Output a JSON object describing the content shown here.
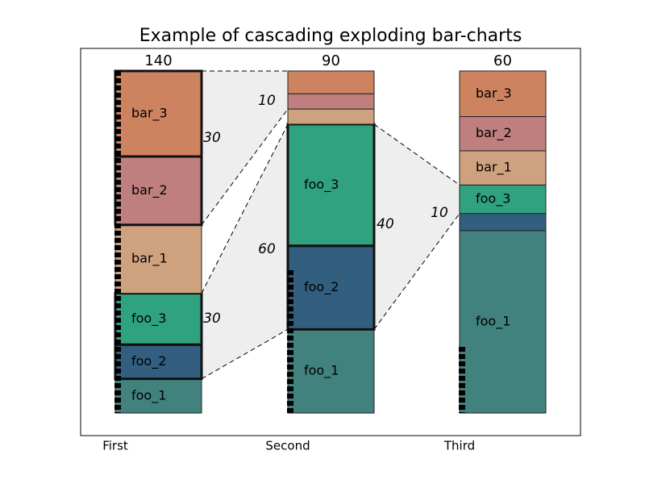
{
  "chart_data": {
    "type": "cascade-bar",
    "title": "Example of cascading exploding bar-charts",
    "categories": [
      "First",
      "Second",
      "Third"
    ],
    "totals": [
      140,
      90,
      60
    ],
    "series": [
      {
        "name": "foo_1",
        "color": "#41827f",
        "values": [
          14,
          22,
          32
        ]
      },
      {
        "name": "foo_2",
        "color": "#325f7f",
        "values": [
          14,
          22,
          3
        ]
      },
      {
        "name": "foo_3",
        "color": "#30a27f",
        "values": [
          21,
          32,
          5
        ]
      },
      {
        "name": "bar_1",
        "color": "#cfa27f",
        "values": [
          28,
          4,
          6
        ]
      },
      {
        "name": "bar_2",
        "color": "#c07f7f",
        "values": [
          28,
          4,
          6
        ]
      },
      {
        "name": "bar_3",
        "color": "#cd835f",
        "values": [
          35,
          6,
          8
        ]
      }
    ],
    "annotations": [
      30,
      30,
      10,
      60,
      40,
      10
    ]
  }
}
